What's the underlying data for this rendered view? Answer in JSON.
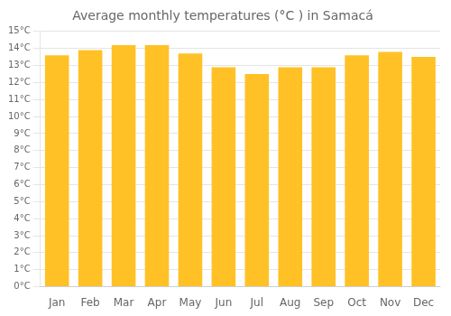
{
  "chart_data": {
    "type": "bar",
    "title": "Average monthly temperatures (°C ) in Samacá",
    "categories": [
      "Jan",
      "Feb",
      "Mar",
      "Apr",
      "May",
      "Jun",
      "Jul",
      "Aug",
      "Sep",
      "Oct",
      "Nov",
      "Dec"
    ],
    "values": [
      13.6,
      13.9,
      14.2,
      14.2,
      13.7,
      12.9,
      12.5,
      12.9,
      12.9,
      13.6,
      13.8,
      13.5
    ],
    "color": "#FFC125",
    "ylim": [
      0,
      15
    ],
    "yticks": [
      {
        "value": 0,
        "label": "0°C"
      },
      {
        "value": 1,
        "label": "1°C"
      },
      {
        "value": 2,
        "label": "2°C"
      },
      {
        "value": 3,
        "label": "3°C"
      },
      {
        "value": 4,
        "label": "4°C"
      },
      {
        "value": 5,
        "label": "5°C"
      },
      {
        "value": 6,
        "label": "6°C"
      },
      {
        "value": 7,
        "label": "7°C"
      },
      {
        "value": 8,
        "label": "8°C"
      },
      {
        "value": 9,
        "label": "9°C"
      },
      {
        "value": 10,
        "label": "10°C"
      },
      {
        "value": 11,
        "label": "11°C"
      },
      {
        "value": 12,
        "label": "12°C"
      },
      {
        "value": 13,
        "label": "13°C"
      },
      {
        "value": 14,
        "label": "14°C"
      },
      {
        "value": 15,
        "label": "15°C"
      }
    ],
    "grid": true
  }
}
